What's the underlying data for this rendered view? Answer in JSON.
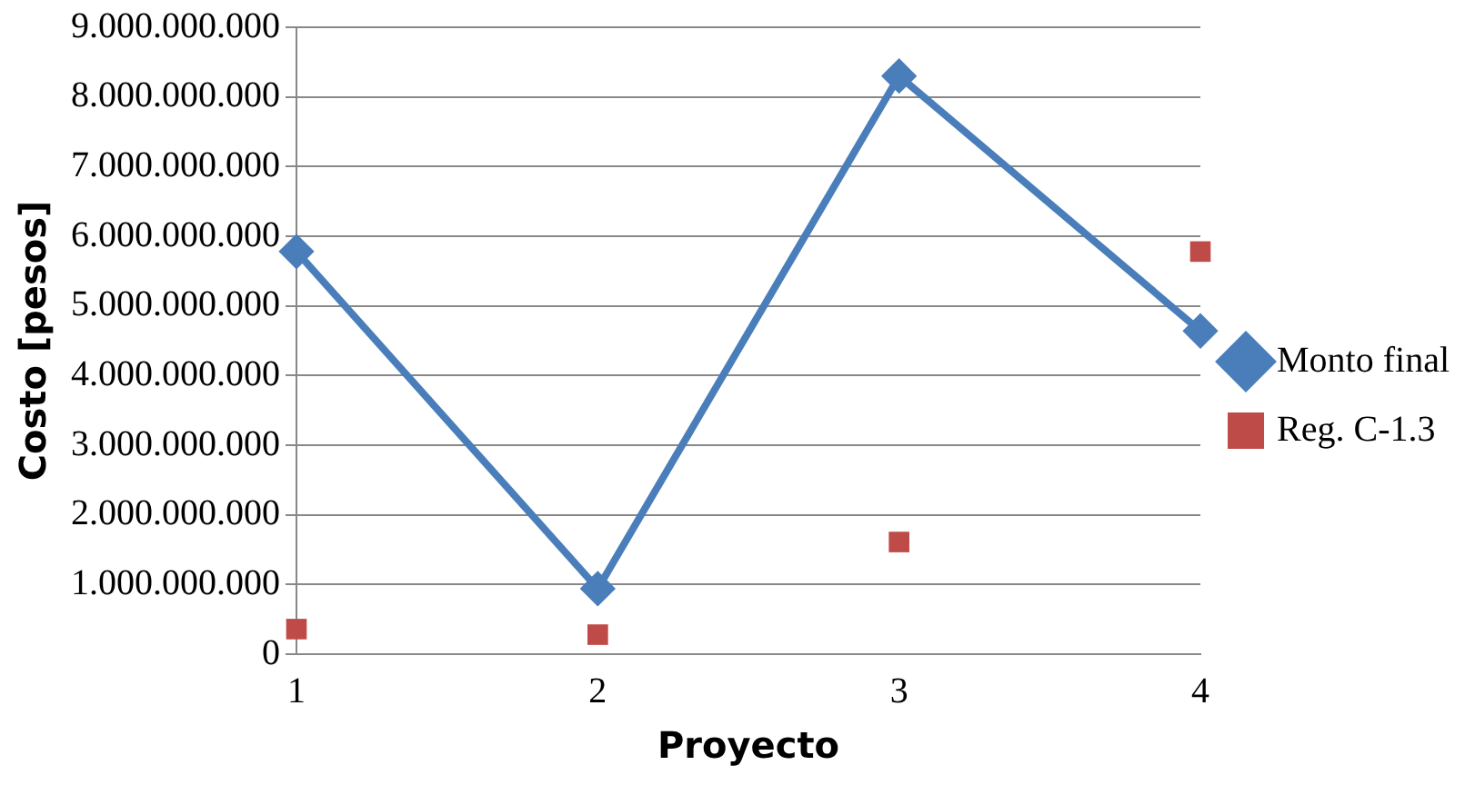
{
  "chart_data": {
    "type": "line",
    "xlabel": "Proyecto",
    "ylabel": "Costo [pesos]",
    "categories": [
      "1",
      "2",
      "3",
      "4"
    ],
    "series": [
      {
        "name": "Monto final",
        "color": "#4a7ebb",
        "values": [
          5780000000,
          940000000,
          8300000000,
          4640000000
        ],
        "marker": "diamond"
      },
      {
        "name": "Reg. C-1.3",
        "type": "scatter",
        "color": "#be4b48",
        "values": [
          360000000,
          280000000,
          1610000000,
          5780000000
        ],
        "marker": "square"
      }
    ],
    "ylim": [
      0,
      9000000000
    ],
    "yticks": [
      {
        "value": 0,
        "label": "0"
      },
      {
        "value": 1000000000,
        "label": "1.000.000.000"
      },
      {
        "value": 2000000000,
        "label": "2.000.000.000"
      },
      {
        "value": 3000000000,
        "label": "3.000.000.000"
      },
      {
        "value": 4000000000,
        "label": "4.000.000.000"
      },
      {
        "value": 5000000000,
        "label": "5.000.000.000"
      },
      {
        "value": 6000000000,
        "label": "6.000.000.000"
      },
      {
        "value": 7000000000,
        "label": "7.000.000.000"
      },
      {
        "value": 8000000000,
        "label": "8.000.000.000"
      },
      {
        "value": 9000000000,
        "label": "9.000.000.000"
      }
    ],
    "grid": "y",
    "legend": "right"
  }
}
